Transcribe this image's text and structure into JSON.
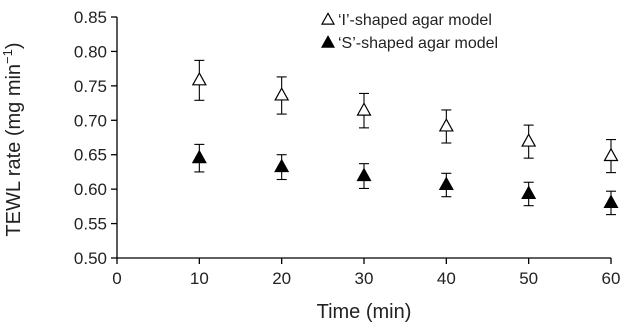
{
  "chart_data": {
    "type": "scatter",
    "title": "",
    "xlabel": "Time (min)",
    "ylabel_main": "TEWL rate (mg min",
    "ylabel_sup": "−1",
    "ylabel_close": ")",
    "xlim": [
      0,
      60
    ],
    "ylim": [
      0.5,
      0.85
    ],
    "xticks": [
      "0",
      "10",
      "20",
      "30",
      "40",
      "50",
      "60"
    ],
    "yticks": [
      "0.50",
      "0.55",
      "0.60",
      "0.65",
      "0.70",
      "0.75",
      "0.80",
      "0.85"
    ],
    "x": [
      10,
      20,
      30,
      40,
      50,
      60
    ],
    "grid": false,
    "legend_position": "top-right",
    "series": [
      {
        "name": "‘I’-shaped agar model",
        "marker": "open-triangle",
        "values": [
          0.758,
          0.736,
          0.714,
          0.691,
          0.669,
          0.648
        ],
        "error": [
          0.029,
          0.027,
          0.025,
          0.024,
          0.024,
          0.024
        ]
      },
      {
        "name": "‘S’-shaped agar model",
        "marker": "filled-triangle",
        "values": [
          0.645,
          0.632,
          0.619,
          0.606,
          0.593,
          0.58
        ],
        "error": [
          0.02,
          0.018,
          0.018,
          0.017,
          0.017,
          0.017
        ]
      }
    ]
  }
}
